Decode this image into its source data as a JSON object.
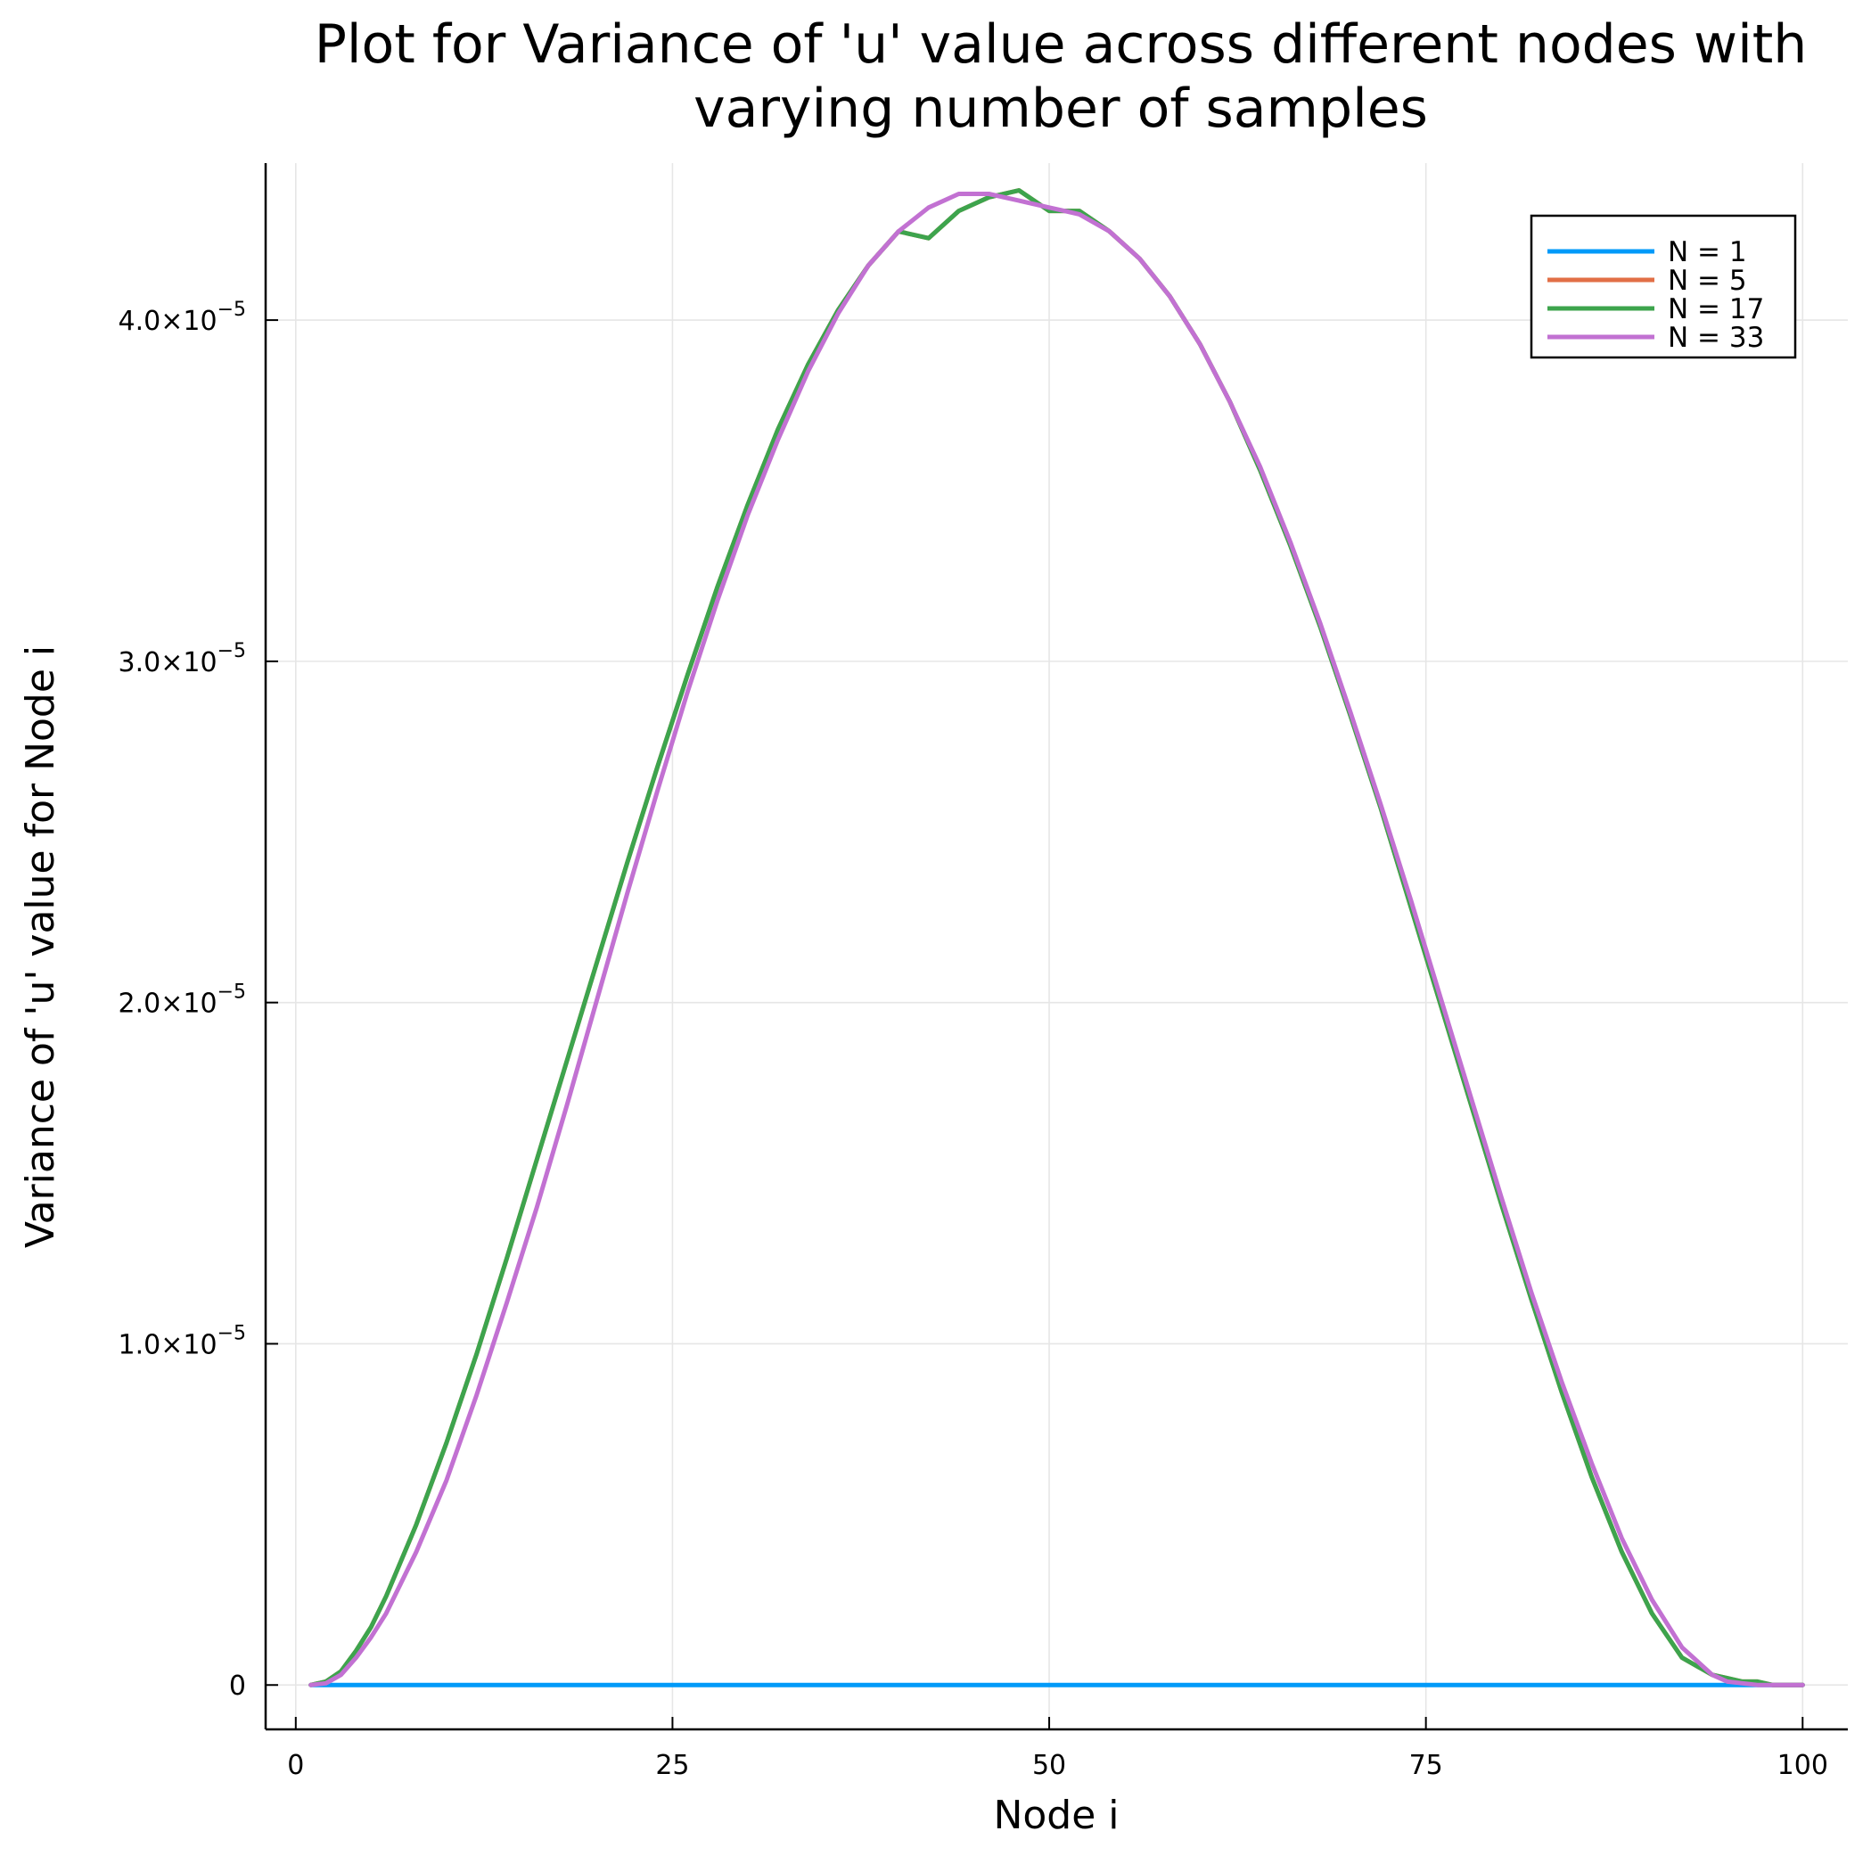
{
  "chart_data": {
    "type": "line",
    "title_lines": [
      "Plot for Variance of 'u' value across different nodes with",
      "varying number of samples"
    ],
    "xlabel": "Node i",
    "ylabel": "Variance of 'u' value for Node i",
    "xlim": [
      -2,
      103
    ],
    "ylim": [
      -1.3e-06,
      4.46e-05
    ],
    "x_ticks": [
      0,
      25,
      50,
      75,
      100
    ],
    "x_tick_labels": [
      "0",
      "25",
      "50",
      "75",
      "100"
    ],
    "y_ticks": [
      0,
      1e-05,
      2e-05,
      3e-05,
      4e-05
    ],
    "y_tick_labels": [
      {
        "mantissa": "0",
        "exponent": ""
      },
      {
        "mantissa": "1.0×10",
        "exponent": "−5"
      },
      {
        "mantissa": "2.0×10",
        "exponent": "−5"
      },
      {
        "mantissa": "3.0×10",
        "exponent": "−5"
      },
      {
        "mantissa": "4.0×10",
        "exponent": "−5"
      }
    ],
    "grid": true,
    "legend_position": "top-right",
    "x": [
      1,
      2,
      3,
      4,
      5,
      6,
      8,
      10,
      12,
      14,
      16,
      18,
      20,
      22,
      24,
      26,
      28,
      30,
      32,
      34,
      36,
      38,
      40,
      42,
      44,
      46,
      48,
      50,
      51,
      52,
      54,
      56,
      58,
      60,
      62,
      64,
      66,
      68,
      70,
      72,
      74,
      76,
      78,
      80,
      82,
      84,
      86,
      88,
      90,
      92,
      94,
      95,
      96,
      97,
      98,
      99,
      100
    ],
    "series": [
      {
        "name": "N = 1",
        "color": "#009af9",
        "values": [
          0,
          0,
          0,
          0,
          0,
          0,
          0,
          0,
          0,
          0,
          0,
          0,
          0,
          0,
          0,
          0,
          0,
          0,
          0,
          0,
          0,
          0,
          0,
          0,
          0,
          0,
          0,
          0,
          0,
          0,
          0,
          0,
          0,
          0,
          0,
          0,
          0,
          0,
          0,
          0,
          0,
          0,
          0,
          0,
          0,
          0,
          0,
          0,
          0,
          0,
          0,
          0,
          0,
          0,
          0,
          0,
          0
        ]
      },
      {
        "name": "N = 5",
        "color": "#e26f46",
        "values": [
          0,
          1e-07,
          4e-07,
          1e-06,
          1.7e-06,
          2.6e-06,
          4.7e-06,
          7.1e-06,
          9.7e-06,
          1.25e-05,
          1.54e-05,
          1.83e-05,
          2.12e-05,
          2.41e-05,
          2.69e-05,
          2.96e-05,
          3.22e-05,
          3.46e-05,
          3.68e-05,
          3.87e-05,
          4.03e-05,
          4.16e-05,
          4.26e-05,
          4.24e-05,
          4.32e-05,
          4.36e-05,
          4.38e-05,
          4.32e-05,
          4.32e-05,
          4.32e-05,
          4.26e-05,
          4.18e-05,
          4.07e-05,
          3.93e-05,
          3.76e-05,
          3.56e-05,
          3.34e-05,
          3.1e-05,
          2.84e-05,
          2.57e-05,
          2.28e-05,
          1.99e-05,
          1.7e-05,
          1.41e-05,
          1.13e-05,
          8.6e-06,
          6.1e-06,
          3.9e-06,
          2.1e-06,
          8e-07,
          3e-07,
          2e-07,
          1e-07,
          1e-07,
          0,
          0,
          0
        ]
      },
      {
        "name": "N = 17",
        "color": "#3da44d",
        "values": [
          0,
          1e-07,
          4e-07,
          1e-06,
          1.7e-06,
          2.6e-06,
          4.7e-06,
          7.1e-06,
          9.7e-06,
          1.25e-05,
          1.54e-05,
          1.83e-05,
          2.12e-05,
          2.41e-05,
          2.69e-05,
          2.96e-05,
          3.22e-05,
          3.46e-05,
          3.68e-05,
          3.87e-05,
          4.03e-05,
          4.16e-05,
          4.26e-05,
          4.24e-05,
          4.32e-05,
          4.36e-05,
          4.38e-05,
          4.32e-05,
          4.32e-05,
          4.32e-05,
          4.26e-05,
          4.18e-05,
          4.07e-05,
          3.93e-05,
          3.76e-05,
          3.56e-05,
          3.34e-05,
          3.1e-05,
          2.84e-05,
          2.57e-05,
          2.28e-05,
          1.99e-05,
          1.7e-05,
          1.41e-05,
          1.13e-05,
          8.6e-06,
          6.1e-06,
          3.9e-06,
          2.1e-06,
          8e-07,
          3e-07,
          2e-07,
          1e-07,
          1e-07,
          0,
          0,
          0
        ]
      },
      {
        "name": "N = 33",
        "color": "#c271d2",
        "values": [
          0,
          5e-08,
          3e-07,
          8e-07,
          1.4e-06,
          2.1e-06,
          3.9e-06,
          6e-06,
          8.5e-06,
          1.12e-05,
          1.4e-05,
          1.7e-05,
          2.01e-05,
          2.32e-05,
          2.62e-05,
          2.91e-05,
          3.18e-05,
          3.43e-05,
          3.65e-05,
          3.85e-05,
          4.02e-05,
          4.16e-05,
          4.26e-05,
          4.33e-05,
          4.37e-05,
          4.37e-05,
          4.35e-05,
          4.33e-05,
          4.32e-05,
          4.31e-05,
          4.26e-05,
          4.18e-05,
          4.07e-05,
          3.93e-05,
          3.76e-05,
          3.57e-05,
          3.35e-05,
          3.11e-05,
          2.85e-05,
          2.58e-05,
          2.3e-05,
          2.01e-05,
          1.72e-05,
          1.43e-05,
          1.15e-05,
          8.9e-06,
          6.5e-06,
          4.3e-06,
          2.5e-06,
          1.1e-06,
          3e-07,
          1e-07,
          5e-08,
          0,
          0,
          0,
          0
        ]
      }
    ]
  }
}
